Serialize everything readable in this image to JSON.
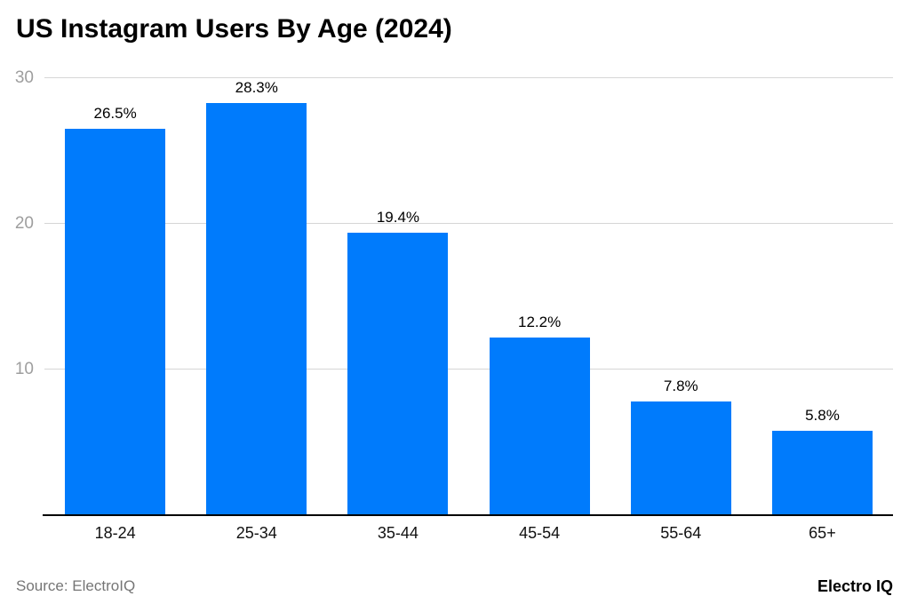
{
  "title": {
    "text": "US Instagram Users By Age (2024)"
  },
  "chart_data": {
    "type": "bar",
    "title": "US Instagram Users By Age (2024)",
    "categories": [
      "18-24",
      "25-34",
      "35-44",
      "45-54",
      "55-64",
      "65+"
    ],
    "values": [
      26.5,
      28.3,
      19.4,
      12.2,
      7.8,
      5.8
    ],
    "value_labels": [
      "26.5%",
      "28.3%",
      "19.4%",
      "12.2%",
      "7.8%",
      "5.8%"
    ],
    "xlabel": "",
    "ylabel": "",
    "ylim": [
      0,
      30
    ],
    "yticks": [
      10,
      20,
      30
    ],
    "grid": true,
    "legend": "none"
  },
  "footer": {
    "source": "Source: ElectroIQ",
    "brand": "Electro IQ"
  },
  "colors": {
    "bar": "#007bfc",
    "grid": "#d6d6d6",
    "axis": "#000000",
    "ytick_label": "#9e9e9e",
    "value_label": "#000000",
    "muted_text": "#757575",
    "background": "#ffffff"
  }
}
